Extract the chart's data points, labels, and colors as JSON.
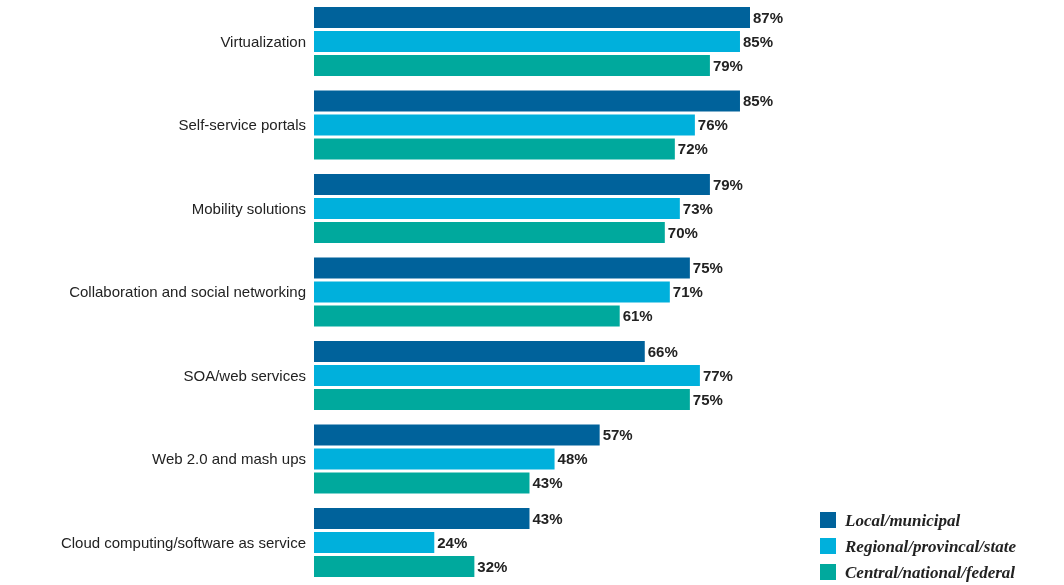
{
  "chart_data": {
    "type": "bar",
    "orientation": "horizontal",
    "legend": "bottom right",
    "categories": [
      "Virtualization",
      "Self-service portals",
      "Mobility solutions",
      "Collaboration and social networking",
      "SOA/web services",
      "Web 2.0 and mash ups",
      "Cloud computing/software as service"
    ],
    "series": [
      {
        "name": "Local/municipal",
        "color": "#00629b",
        "values": [
          87,
          85,
          79,
          75,
          66,
          57,
          43
        ],
        "value_labels": [
          "87%",
          "85%",
          "79%",
          "75%",
          "66%",
          "57%",
          "43%"
        ]
      },
      {
        "name": "Regional/provincal/state",
        "color": "#00b0dc",
        "values": [
          85,
          76,
          73,
          71,
          77,
          48,
          24
        ],
        "value_labels": [
          "85%",
          "76%",
          "73%",
          "71%",
          "77%",
          "48%",
          "24%"
        ]
      },
      {
        "name": "Central/national/federal",
        "color": "#00a99d",
        "values": [
          79,
          72,
          70,
          61,
          75,
          43,
          32
        ],
        "value_labels": [
          "79%",
          "72%",
          "70%",
          "61%",
          "75%",
          "43%",
          "32%"
        ]
      }
    ]
  }
}
